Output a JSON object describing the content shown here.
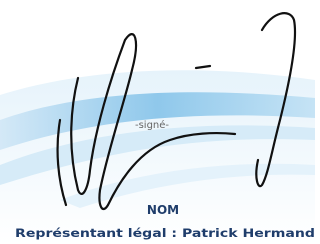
{
  "document": {
    "stamp": "-signé-",
    "heading": "NOM",
    "signatory": "Représentant légal : Patrick Hermand"
  }
}
